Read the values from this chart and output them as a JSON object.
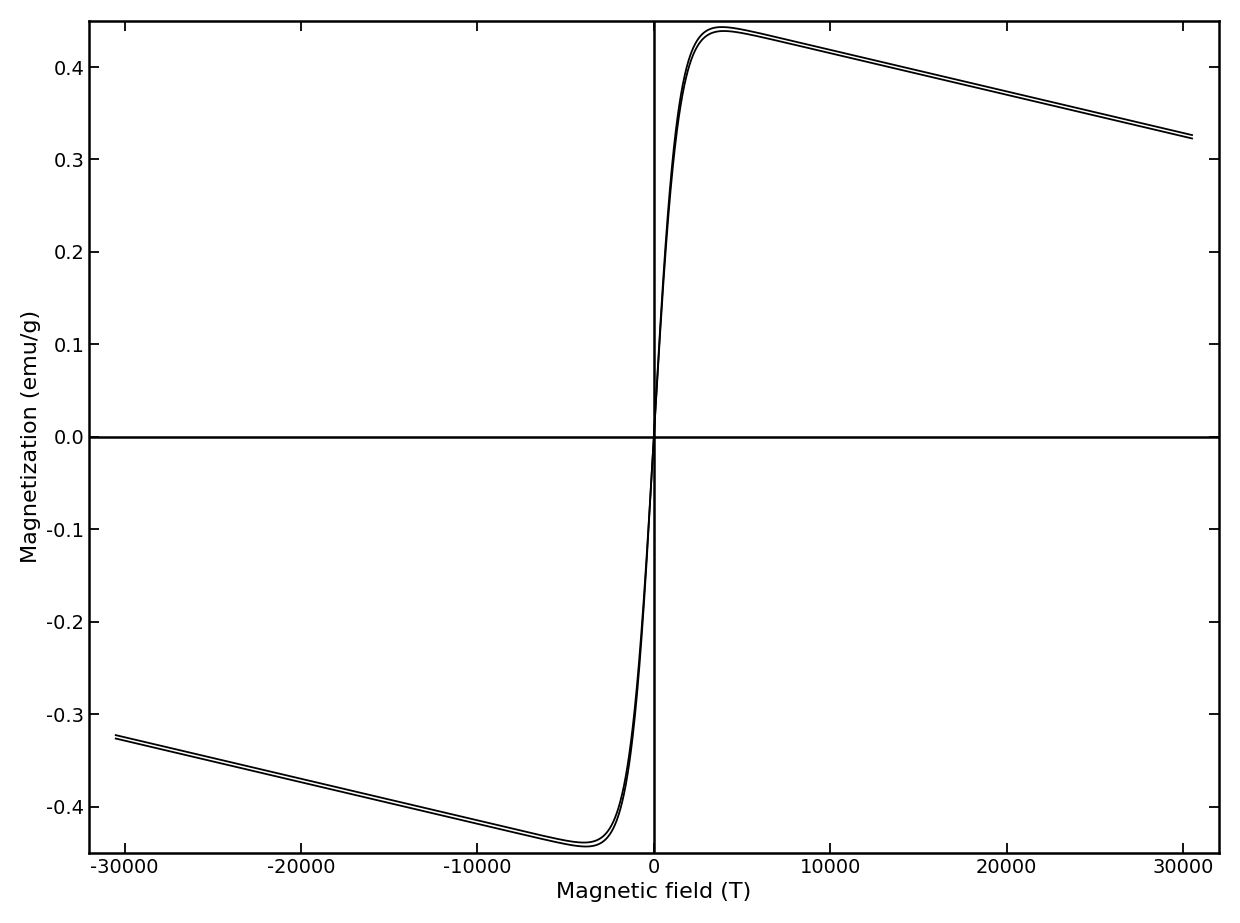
{
  "title": "",
  "xlabel": "Magnetic field (T)",
  "ylabel": "Magnetization (emu/g)",
  "xlim": [
    -32000,
    32000
  ],
  "ylim": [
    -0.45,
    0.45
  ],
  "xticks": [
    -30000,
    -20000,
    -10000,
    0,
    10000,
    20000,
    30000
  ],
  "yticks": [
    -0.4,
    -0.3,
    -0.2,
    -0.1,
    0.0,
    0.1,
    0.2,
    0.3,
    0.4
  ],
  "background_color": "#ffffff",
  "line_color": "#000000",
  "line_width": 1.3,
  "Ms": 0.46,
  "a_param": 1400.0,
  "slope": -4.5e-06,
  "xlabel_fontsize": 16,
  "ylabel_fontsize": 16,
  "tick_fontsize": 14,
  "spine_linewidth": 1.8,
  "axline_linewidth": 1.8
}
